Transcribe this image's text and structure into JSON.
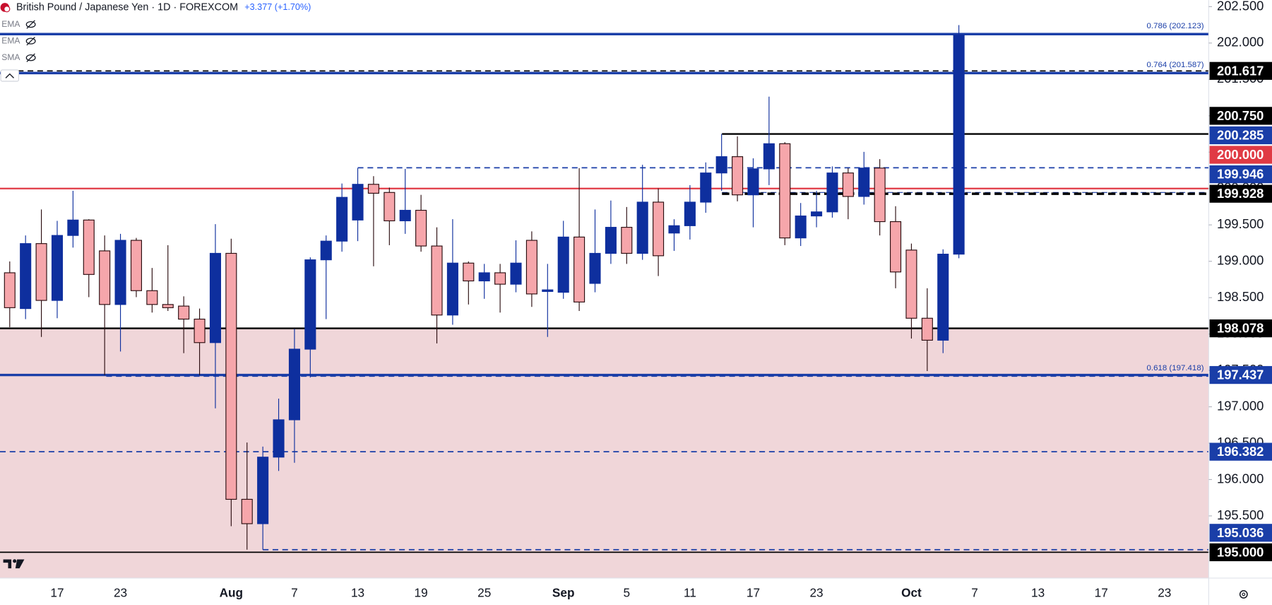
{
  "chart_data": {
    "type": "candlestick",
    "title": "British Pound / Japanese Yen · 1D · FOREXCOM",
    "change": "+3.377 (+1.70%)",
    "indicators": [
      "EMA",
      "EMA",
      "SMA"
    ],
    "categories": [
      null,
      null,
      null,
      "17",
      null,
      null,
      null,
      "23",
      null,
      null,
      null,
      null,
      null,
      null,
      "Aug",
      null,
      null,
      null,
      "7",
      null,
      null,
      null,
      "13",
      null,
      null,
      null,
      "19",
      null,
      null,
      null,
      "25",
      null,
      null,
      null,
      null,
      "Sep",
      null,
      null,
      null,
      "5",
      null,
      null,
      null,
      "11",
      null,
      null,
      null,
      "17",
      null,
      null,
      null,
      "23",
      null,
      null,
      null,
      null,
      null,
      "Oct",
      null,
      null,
      null,
      "7",
      null,
      null,
      null,
      "13",
      null,
      null,
      null,
      "17",
      null,
      null,
      null,
      "23",
      null,
      null
    ],
    "open": [
      198.842,
      198.35,
      199.243,
      198.462,
      199.355,
      199.567,
      199.143,
      198.406,
      199.288,
      198.596,
      198.406,
      198.384,
      198.205,
      197.882,
      199.109,
      195.728,
      195.393,
      196.308,
      196.821,
      197.792,
      199.02,
      199.277,
      199.567,
      200.058,
      199.946,
      199.556,
      199.701,
      199.21,
      198.261,
      198.975,
      198.73,
      198.842,
      198.685,
      199.288,
      198.585,
      198.574,
      199.333,
      198.696,
      199.109,
      199.467,
      199.109,
      199.813,
      199.388,
      199.489,
      199.813,
      200.214,
      200.438,
      199.913,
      200.27,
      200.616,
      199.321,
      199.623,
      199.679,
      200.214,
      199.891,
      200.281,
      199.545,
      199.154,
      198.217,
      197.915,
      199.098,
      null,
      null,
      null,
      null,
      null,
      null,
      null,
      null,
      null,
      null,
      null,
      null,
      null,
      null,
      null
    ],
    "high": [
      198.998,
      199.355,
      199.712,
      199.556,
      199.969,
      199.578,
      199.355,
      199.377,
      199.321,
      198.908,
      199.221,
      198.518,
      198.35,
      199.511,
      199.31,
      196.509,
      196.453,
      197.112,
      198.071,
      199.054,
      199.355,
      200.069,
      200.281,
      200.17,
      200.013,
      200.27,
      199.913,
      199.467,
      199.578,
      198.998,
      198.964,
      198.964,
      199.288,
      199.411,
      198.964,
      199.556,
      200.281,
      199.712,
      199.835,
      199.746,
      200.326,
      200.002,
      199.578,
      200.047,
      200.359,
      200.75,
      200.717,
      200.415,
      201.263,
      200.638,
      199.801,
      199.969,
      200.304,
      200.281,
      200.504,
      200.404,
      199.757,
      199.243,
      198.629,
      199.165,
      202.246,
      null,
      null,
      null,
      null,
      null,
      null,
      null,
      null,
      null,
      null,
      null,
      null,
      null,
      null,
      null
    ],
    "low": [
      198.094,
      198.205,
      197.96,
      198.217,
      199.188,
      198.507,
      197.435,
      197.759,
      198.507,
      198.295,
      198.317,
      197.737,
      197.435,
      196.978,
      195.359,
      195.036,
      195.036,
      196.118,
      196.23,
      197.402,
      198.205,
      199.132,
      199.277,
      198.931,
      199.221,
      199.377,
      199.132,
      197.871,
      198.127,
      198.406,
      198.484,
      198.295,
      198.574,
      198.373,
      197.96,
      198.484,
      198.317,
      198.574,
      198.964,
      198.964,
      199.02,
      198.797,
      199.143,
      199.299,
      199.667,
      199.969,
      199.824,
      199.467,
      200.047,
      199.221,
      199.21,
      199.467,
      199.6,
      199.578,
      199.779,
      199.355,
      198.629,
      197.938,
      197.491,
      197.737,
      199.042,
      null,
      null,
      null,
      null,
      null,
      null,
      null,
      null,
      null,
      null,
      null,
      null,
      null,
      null,
      null
    ],
    "close": [
      198.362,
      199.243,
      198.462,
      199.355,
      199.567,
      198.819,
      198.406,
      199.288,
      198.596,
      198.406,
      198.362,
      198.205,
      197.882,
      199.109,
      195.728,
      195.393,
      196.308,
      196.821,
      197.792,
      199.02,
      199.277,
      199.879,
      200.058,
      199.935,
      199.556,
      199.701,
      199.21,
      198.261,
      198.975,
      198.73,
      198.842,
      198.685,
      198.975,
      198.551,
      198.607,
      199.333,
      198.44,
      199.109,
      199.467,
      199.109,
      199.813,
      199.076,
      199.489,
      199.813,
      200.214,
      200.438,
      199.913,
      200.27,
      200.616,
      199.321,
      199.623,
      199.679,
      200.214,
      199.891,
      200.281,
      199.545,
      198.853,
      198.217,
      197.915,
      199.098,
      202.112,
      null,
      null,
      null,
      null,
      null,
      null,
      null,
      null,
      null,
      null,
      null,
      null,
      null,
      null,
      null
    ],
    "up_color": "#0e2f9e",
    "down_color": "#f6a6ab",
    "down_edge": "#2b0d10",
    "ylim": [
      194.645,
      202.59
    ],
    "yticks": [
      {
        "value": 195,
        "label": "195.000"
      },
      {
        "value": 195.5,
        "label": "195.500"
      },
      {
        "value": 196,
        "label": "196.000"
      },
      {
        "value": 196.5,
        "label": "196.500"
      },
      {
        "value": 197,
        "label": "197.000"
      },
      {
        "value": 197.5,
        "label": "197.500"
      },
      {
        "value": 198,
        "label": "198.000"
      },
      {
        "value": 198.5,
        "label": "198.500"
      },
      {
        "value": 199,
        "label": "199.000"
      },
      {
        "value": 199.5,
        "label": "199.500"
      },
      {
        "value": 200,
        "label": "200.000"
      },
      {
        "value": 200.5,
        "label": "200.500"
      },
      {
        "value": 201,
        "label": "201.000"
      },
      {
        "value": 201.5,
        "label": "201.500"
      },
      {
        "value": 202,
        "label": "202.000"
      },
      {
        "value": 202.5,
        "label": "202.500"
      }
    ],
    "zone_color": "#f0d6d9",
    "levels": [
      {
        "price": 202.123,
        "color": "#1a3ea8",
        "style": "solid",
        "width": 3,
        "fib_label": "0.786 (202.123)"
      },
      {
        "price": 201.617,
        "color": "#000000",
        "style": "dashed",
        "width": 1.5,
        "axis_label": "201.617"
      },
      {
        "price": 201.587,
        "color": "#1a3ea8",
        "style": "solid",
        "width": 3,
        "fib_label": "0.764 (201.587)"
      },
      {
        "price": 200.75,
        "color": "#000000",
        "style": "solid",
        "width": 2,
        "axis_label": "200.750"
      },
      {
        "price": 200.285,
        "color": "#1a3ea8",
        "style": "dashed",
        "width": 1.5,
        "axis_label": "200.285"
      },
      {
        "price": 200,
        "color": "#e03a44",
        "style": "solid",
        "width": 2,
        "axis_label": "200.000"
      },
      {
        "price": 199.946,
        "color": "#1a3ea8",
        "style": "dashed",
        "width": 1,
        "axis_label": "199.946"
      },
      {
        "price": 199.928,
        "color": "#000000",
        "style": "dashed",
        "width": 3,
        "axis_label": "199.928"
      },
      {
        "price": 198.078,
        "color": "#000000",
        "style": "solid",
        "width": 2,
        "axis_label": "198.078",
        "zone_below": true
      },
      {
        "price": 197.437,
        "color": "#1a3ea8",
        "style": "solid",
        "width": 3,
        "axis_label": "197.437"
      },
      {
        "price": 197.418,
        "color": "#1a3ea8",
        "style": "dashed",
        "width": 1,
        "fib_label": "0.618 (197.418)"
      },
      {
        "price": 196.382,
        "color": "#1a3ea8",
        "style": "dashed",
        "width": 1.5,
        "axis_label": "196.382"
      },
      {
        "price": 195.036,
        "color": "#1a3ea8",
        "style": "dashed",
        "width": 1.5,
        "axis_label": "195.036"
      },
      {
        "price": 195,
        "color": "#000000",
        "style": "solid",
        "width": 1.5,
        "axis_label": "195.000"
      }
    ]
  }
}
